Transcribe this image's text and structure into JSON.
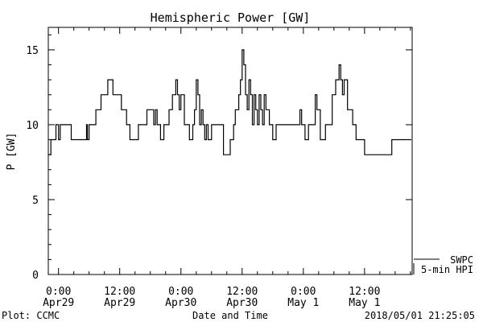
{
  "chart_data": {
    "type": "line",
    "title": "Hemispheric Power [GW]",
    "xlabel": "Date and Time",
    "ylabel": "P [GW]",
    "ylim": [
      0,
      16.5
    ],
    "xlim": [
      "2018-04-28T22:00",
      "2018-05-01T21:20"
    ],
    "yticks": [
      {
        "value": 0,
        "label": "0"
      },
      {
        "value": 5,
        "label": "5"
      },
      {
        "value": 10,
        "label": "10"
      },
      {
        "value": 15,
        "label": "15"
      }
    ],
    "xticks": [
      {
        "t": "2018-04-29T00:00",
        "line1": "0:00",
        "line2": "Apr29"
      },
      {
        "t": "2018-04-29T12:00",
        "line1": "12:00",
        "line2": "Apr29"
      },
      {
        "t": "2018-04-30T00:00",
        "line1": "0:00",
        "line2": "Apr30"
      },
      {
        "t": "2018-04-30T12:00",
        "line1": "12:00",
        "line2": "Apr30"
      },
      {
        "t": "2018-05-01T00:00",
        "line1": "0:00",
        "line2": "May 1"
      },
      {
        "t": "2018-05-01T12:00",
        "line1": "12:00",
        "line2": "May 1"
      }
    ],
    "legend_position": "bottom-right",
    "series": [
      {
        "name": "SWPC",
        "values": []
      },
      {
        "name": "5-min HPI",
        "x": [
          "2018-04-28T22:00",
          "2018-04-28T22:30",
          "2018-04-28T23:30",
          "2018-04-29T00:00",
          "2018-04-29T00:20",
          "2018-04-29T00:40",
          "2018-04-29T01:00",
          "2018-04-29T02:30",
          "2018-04-29T05:00",
          "2018-04-29T05:30",
          "2018-04-29T05:40",
          "2018-04-29T06:00",
          "2018-04-29T07:20",
          "2018-04-29T08:20",
          "2018-04-29T09:40",
          "2018-04-29T10:00",
          "2018-04-29T10:40",
          "2018-04-29T12:20",
          "2018-04-29T13:20",
          "2018-04-29T14:00",
          "2018-04-29T15:00",
          "2018-04-29T15:40",
          "2018-04-29T17:20",
          "2018-04-29T18:00",
          "2018-04-29T18:40",
          "2018-04-29T19:00",
          "2018-04-29T19:20",
          "2018-04-29T20:00",
          "2018-04-29T20:40",
          "2018-04-29T21:40",
          "2018-04-29T22:20",
          "2018-04-29T23:00",
          "2018-04-29T23:20",
          "2018-04-29T23:40",
          "2018-04-30T00:00",
          "2018-04-30T00:40",
          "2018-04-30T01:40",
          "2018-04-30T02:20",
          "2018-04-30T02:40",
          "2018-04-30T03:00",
          "2018-04-30T03:20",
          "2018-04-30T03:40",
          "2018-04-30T04:00",
          "2018-04-30T04:20",
          "2018-04-30T04:40",
          "2018-04-30T05:00",
          "2018-04-30T05:20",
          "2018-04-30T06:00",
          "2018-04-30T08:20",
          "2018-04-30T09:00",
          "2018-04-30T09:40",
          "2018-04-30T10:20",
          "2018-04-30T10:40",
          "2018-04-30T11:20",
          "2018-04-30T11:40",
          "2018-04-30T12:00",
          "2018-04-30T12:20",
          "2018-04-30T12:40",
          "2018-04-30T13:00",
          "2018-04-30T13:20",
          "2018-04-30T13:40",
          "2018-04-30T14:00",
          "2018-04-30T14:20",
          "2018-04-30T14:40",
          "2018-04-30T15:00",
          "2018-04-30T15:20",
          "2018-04-30T15:40",
          "2018-04-30T16:00",
          "2018-04-30T16:20",
          "2018-04-30T16:40",
          "2018-04-30T17:20",
          "2018-04-30T18:00",
          "2018-04-30T18:40",
          "2018-04-30T20:00",
          "2018-04-30T23:20",
          "2018-04-30T23:40",
          "2018-05-01T00:20",
          "2018-05-01T01:00",
          "2018-05-01T02:20",
          "2018-05-01T02:40",
          "2018-05-01T03:20",
          "2018-05-01T04:20",
          "2018-05-01T05:40",
          "2018-05-01T06:20",
          "2018-05-01T07:00",
          "2018-05-01T07:20",
          "2018-05-01T07:40",
          "2018-05-01T08:00",
          "2018-05-01T08:40",
          "2018-05-01T09:40",
          "2018-05-01T10:00",
          "2018-05-01T10:20",
          "2018-05-01T11:40",
          "2018-05-01T12:00",
          "2018-05-01T15:00",
          "2018-05-01T17:20",
          "2018-05-01T18:00",
          "2018-05-01T20:40",
          "2018-05-01T21:00"
        ],
        "values": [
          8,
          9,
          10,
          9,
          10,
          10,
          10,
          9,
          9,
          10,
          9,
          10,
          11,
          12,
          13,
          13,
          12,
          11,
          10,
          9,
          9,
          10,
          11,
          11,
          10,
          11,
          10,
          9,
          10,
          11,
          12,
          13,
          12,
          11,
          12,
          10,
          9,
          10,
          11,
          13,
          12,
          10,
          11,
          10,
          9,
          10,
          9,
          10,
          8,
          8,
          9,
          10,
          11,
          12,
          13,
          15,
          14,
          12,
          11,
          13,
          12,
          10,
          12,
          11,
          10,
          12,
          11,
          10,
          12,
          11,
          10,
          9,
          10,
          10,
          11,
          10,
          9,
          10,
          12,
          11,
          9,
          10,
          12,
          13,
          14,
          13,
          12,
          13,
          11,
          10,
          10,
          9,
          9,
          8,
          8,
          9,
          9,
          9,
          9
        ]
      }
    ]
  },
  "footer": {
    "left": "Plot: CCMC",
    "right": "2018/05/01 21:25:05"
  }
}
